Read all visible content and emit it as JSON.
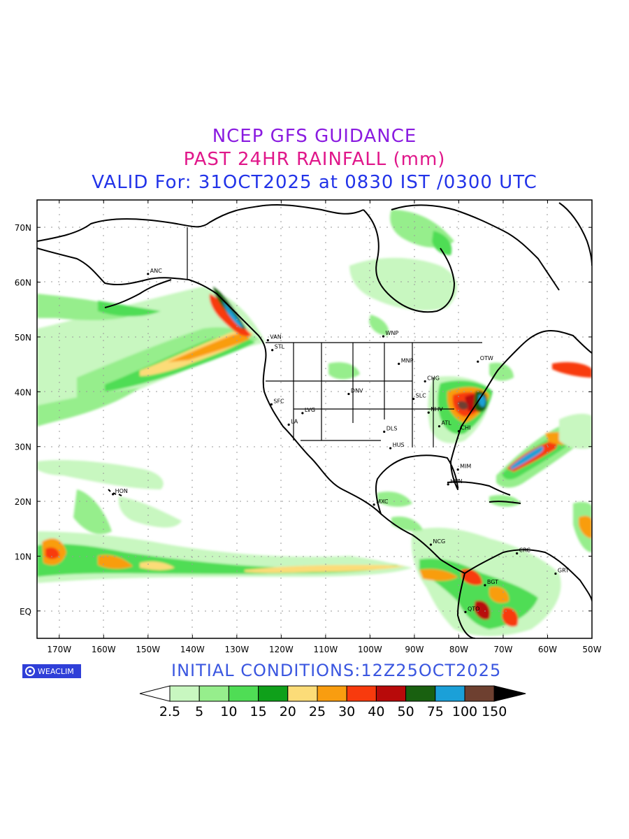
{
  "title": {
    "line1": "NCEP GFS GUIDANCE",
    "line2": "PAST 24HR RAINFALL (mm)",
    "line3": "VALID For: 31OCT2025 at 0830 IST /0300 UTC",
    "colors": {
      "line1": "#8a1be0",
      "line2": "#e0178a",
      "line3": "#2233e8"
    }
  },
  "map": {
    "lat_labels": [
      "70N",
      "60N",
      "50N",
      "40N",
      "30N",
      "20N",
      "10N",
      "EQ"
    ],
    "lon_labels": [
      "170W",
      "160W",
      "150W",
      "140W",
      "130W",
      "120W",
      "110W",
      "100W",
      "90W",
      "80W",
      "70W",
      "60W",
      "50W"
    ],
    "city_labels": [
      {
        "text": "ANC",
        "lon": -150,
        "lat": 61.5
      },
      {
        "text": "VAN",
        "lon": -123,
        "lat": 49.4
      },
      {
        "text": "STL",
        "lon": -122,
        "lat": 47.6
      },
      {
        "text": "WNP",
        "lon": -97,
        "lat": 50.1
      },
      {
        "text": "MNP",
        "lon": -93.5,
        "lat": 45.1
      },
      {
        "text": "OTW",
        "lon": -75.7,
        "lat": 45.5
      },
      {
        "text": "CHG",
        "lon": -87.6,
        "lat": 41.9
      },
      {
        "text": "DNV",
        "lon": -104.8,
        "lat": 39.6
      },
      {
        "text": "SLC",
        "lon": -90.2,
        "lat": 38.7
      },
      {
        "text": "SFC",
        "lon": -122.2,
        "lat": 37.7
      },
      {
        "text": "LVG",
        "lon": -115.2,
        "lat": 36.1
      },
      {
        "text": "NHV",
        "lon": -86.8,
        "lat": 36.2
      },
      {
        "text": "LA",
        "lon": -118.3,
        "lat": 34.0
      },
      {
        "text": "ATL",
        "lon": -84.4,
        "lat": 33.7
      },
      {
        "text": "DLS",
        "lon": -96.8,
        "lat": 32.7
      },
      {
        "text": "CHI",
        "lon": -80.0,
        "lat": 32.8
      },
      {
        "text": "HUS",
        "lon": -95.4,
        "lat": 29.7
      },
      {
        "text": "MIM",
        "lon": -80.2,
        "lat": 25.8
      },
      {
        "text": "HVN",
        "lon": -82.4,
        "lat": 23.1
      },
      {
        "text": "HON",
        "lon": -157.9,
        "lat": 21.3
      },
      {
        "text": "MXC",
        "lon": -99.1,
        "lat": 19.4
      },
      {
        "text": "NCG",
        "lon": -86.3,
        "lat": 12.1
      },
      {
        "text": "CRC",
        "lon": -66.9,
        "lat": 10.5
      },
      {
        "text": "GRT",
        "lon": -58.2,
        "lat": 6.8
      },
      {
        "text": "BGT",
        "lon": -74.1,
        "lat": 4.7
      },
      {
        "text": "QTO",
        "lon": -78.5,
        "lat": -0.2
      }
    ]
  },
  "footer": {
    "badge_text": "WEACLIM",
    "initial_conditions": "INITIAL CONDITIONS:12Z25OCT2025",
    "initial_color": "#3a56e0"
  },
  "legend": {
    "labels": [
      "2.5",
      "5",
      "10",
      "15",
      "20",
      "25",
      "30",
      "40",
      "50",
      "75",
      "100",
      "150"
    ],
    "colors": [
      "#c8f7c0",
      "#96ee8c",
      "#4fdd55",
      "#0fa01a",
      "#fcdc78",
      "#f99d10",
      "#f83a0d",
      "#b80a0a",
      "#196010",
      "#1ba0d8",
      "#6e4030"
    ],
    "low_color": "#ffffff",
    "high_color": "#000000"
  }
}
